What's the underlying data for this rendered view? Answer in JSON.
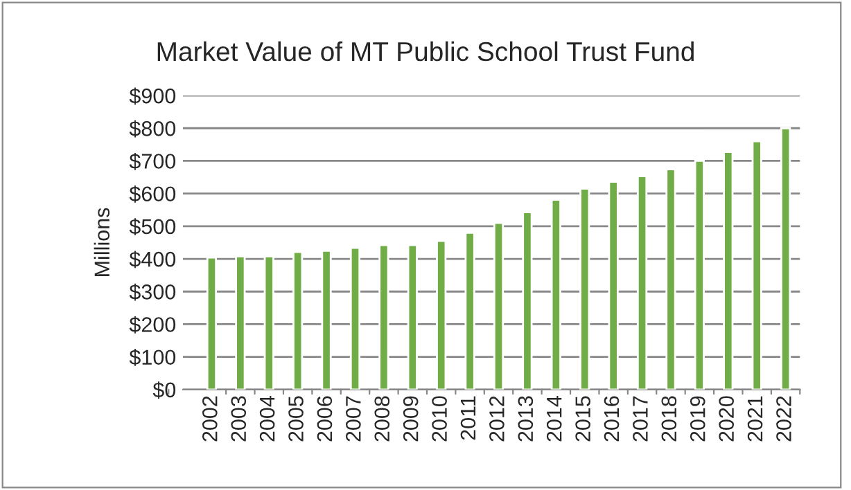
{
  "chart_data": {
    "type": "bar",
    "title": "Market Value of MT Public School Trust Fund",
    "ylabel": "Millions",
    "categories": [
      "2002",
      "2003",
      "2004",
      "2005",
      "2006",
      "2007",
      "2008",
      "2009",
      "2010",
      "2011",
      "2012",
      "2013",
      "2014",
      "2015",
      "2016",
      "2017",
      "2018",
      "2019",
      "2020",
      "2021",
      "2022"
    ],
    "values": [
      404,
      408,
      408,
      421,
      425,
      434,
      442,
      442,
      455,
      480,
      510,
      543,
      581,
      615,
      636,
      653,
      674,
      700,
      727,
      760,
      800
    ],
    "color": "#70ad47",
    "ylim": [
      0,
      900
    ],
    "yticks": [
      {
        "value": 0,
        "label": "$0"
      },
      {
        "value": 100,
        "label": "$100"
      },
      {
        "value": 200,
        "label": "$200"
      },
      {
        "value": 300,
        "label": "$300"
      },
      {
        "value": 400,
        "label": "$400"
      },
      {
        "value": 500,
        "label": "$500"
      },
      {
        "value": 600,
        "label": "$600"
      },
      {
        "value": 700,
        "label": "$700"
      },
      {
        "value": 800,
        "label": "$800"
      },
      {
        "value": 900,
        "label": "$900"
      }
    ],
    "grid": "y"
  }
}
